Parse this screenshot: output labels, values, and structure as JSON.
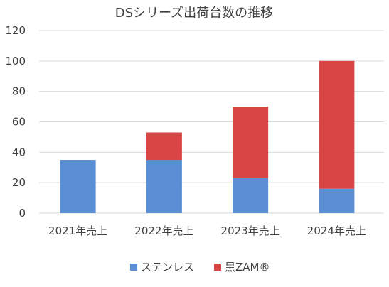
{
  "chart_data": {
    "type": "bar",
    "stacked": true,
    "title": "DSシリーズ出荷台数の推移",
    "xlabel": "",
    "ylabel": "",
    "categories": [
      "2021年売上",
      "2022年売上",
      "2023年売上",
      "2024年売上"
    ],
    "series": [
      {
        "name": "ステンレス",
        "color": "#5b8fd5",
        "values": [
          35,
          35,
          23,
          16
        ]
      },
      {
        "name": "黒ZAM®",
        "color": "#d94545",
        "values": [
          0,
          18,
          47,
          84
        ]
      }
    ],
    "ylim": [
      0,
      120
    ],
    "yticks": [
      0,
      20,
      40,
      60,
      80,
      100,
      120
    ],
    "grid": true,
    "legend_position": "bottom"
  }
}
